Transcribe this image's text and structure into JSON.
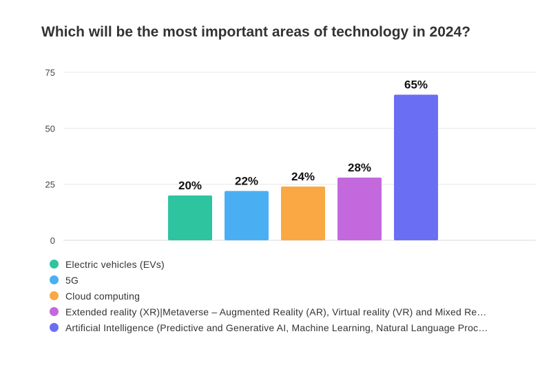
{
  "title": "Which will be the most important areas of technology in 2024?",
  "chart_data": {
    "type": "bar",
    "title": "Which will be the most important areas of technology in 2024?",
    "xlabel": "",
    "ylabel": "",
    "ylim": [
      0,
      75
    ],
    "yticks": [
      "0",
      "25",
      "50",
      "75"
    ],
    "grid": true,
    "legend_position": "bottom",
    "categories": [
      "Electric vehicles (EVs)",
      "5G",
      "Cloud computing",
      "Extended reality (XR)|Metaverse – Augmented Reality (AR), Virtual reality (VR) and Mixed Re…",
      "Artificial Intelligence (Predictive and Generative AI, Machine Learning, Natural Language Proc…"
    ],
    "values": [
      20,
      22,
      24,
      28,
      65
    ],
    "data_labels": [
      "20%",
      "22%",
      "24%",
      "28%",
      "65%"
    ],
    "colors": [
      "#2ec4a0",
      "#4aaff2",
      "#f9a843",
      "#c368dd",
      "#6a6ef2"
    ]
  }
}
